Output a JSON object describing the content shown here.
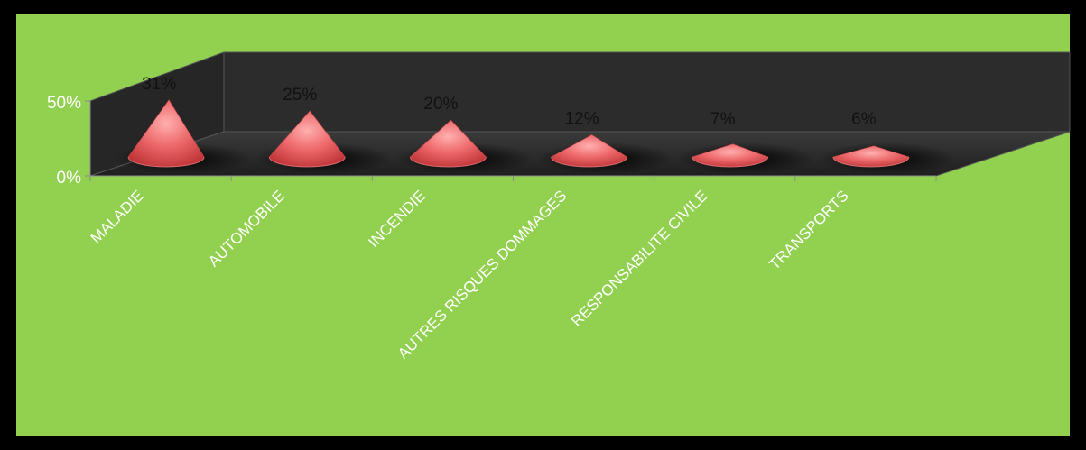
{
  "chart_data": {
    "type": "bar",
    "style": "3d-cone",
    "categories": [
      "MALADIE",
      "AUTOMOBILE",
      "INCENDIE",
      "AUTRES RISQUES DOMMAGES",
      "RESPONSABILITE CIVILE",
      "TRANSPORTS"
    ],
    "values": [
      31,
      25,
      20,
      12,
      7,
      6
    ],
    "data_labels": [
      "31%",
      "25%",
      "20%",
      "12%",
      "7%",
      "6%"
    ],
    "y_ticks": [
      "0%",
      "50%"
    ],
    "ylim": [
      0,
      50
    ],
    "grid": false,
    "legend": "none"
  },
  "colors": {
    "outer_background": "#000000",
    "plot_background": "#92d050",
    "walls": "#2e2e2e",
    "cone": "#e8575a",
    "axis_labels": "#ffffff",
    "data_labels": "#111111"
  }
}
